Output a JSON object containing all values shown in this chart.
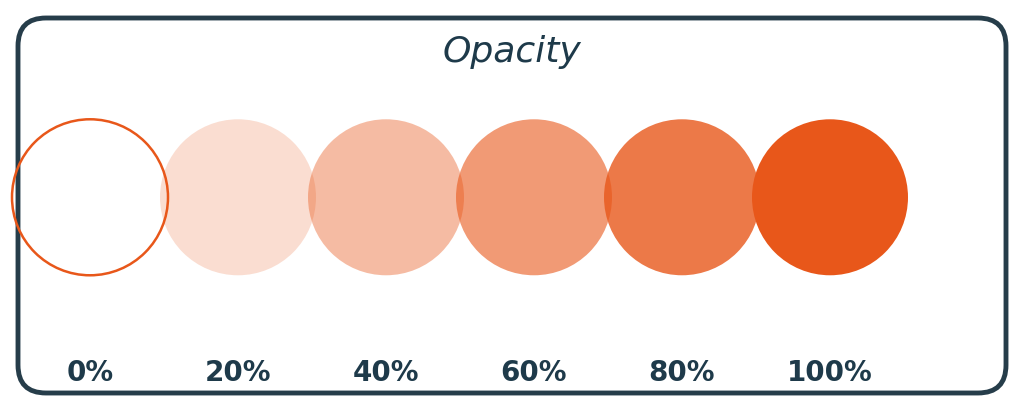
{
  "title": "Opacity",
  "title_color": "#1e3a4a",
  "title_fontsize": 26,
  "background_color": "#ffffff",
  "border_color": "#263d4a",
  "border_linewidth": 3.5,
  "circle_color": "#e8571a",
  "opacities": [
    0.0,
    0.2,
    0.4,
    0.6,
    0.8,
    1.0
  ],
  "labels": [
    "0%",
    "20%",
    "40%",
    "60%",
    "80%",
    "100%"
  ],
  "label_color": "#1e3a4a",
  "label_fontsize": 20,
  "figwidth": 10.24,
  "figheight": 4.11,
  "dpi": 100
}
